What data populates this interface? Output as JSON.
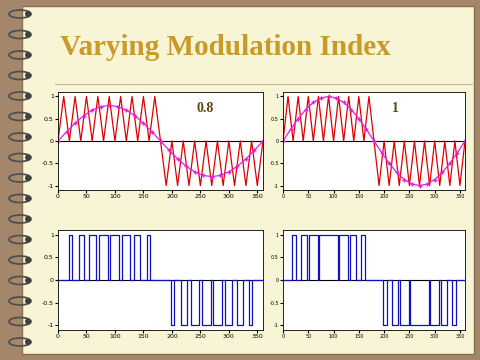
{
  "title": "Varying Modulation Index",
  "chart_data": [
    {
      "type": "line",
      "annotations": [
        "0.8"
      ],
      "xlim": [
        0,
        360
      ],
      "ylim": [
        -1.1,
        1.1
      ],
      "xticks": [
        0,
        50,
        100,
        150,
        200,
        250,
        300,
        350
      ],
      "yticks": [
        -1,
        -0.5,
        0,
        0.5,
        1
      ],
      "series": [
        {
          "type": "line",
          "color": "#e00000",
          "x": [
            0,
            10,
            20,
            30,
            40,
            50,
            60,
            70,
            80,
            90,
            100,
            110,
            120,
            130,
            140,
            150,
            160,
            170,
            180,
            190,
            200,
            210,
            220,
            230,
            240,
            250,
            260,
            270,
            280,
            290,
            300,
            310,
            320,
            330,
            340,
            350,
            360
          ],
          "values": [
            0,
            1,
            0,
            1,
            0,
            1,
            0,
            1,
            0,
            1,
            0,
            1,
            0,
            1,
            0,
            1,
            0,
            1,
            0,
            -1,
            0,
            -1,
            0,
            -1,
            0,
            -1,
            0,
            -1,
            0,
            -1,
            0,
            -1,
            0,
            -1,
            0,
            -1,
            0
          ]
        },
        {
          "type": "line",
          "color": "#e020e0",
          "marker": "+",
          "x": [
            0,
            15,
            30,
            45,
            60,
            75,
            90,
            105,
            120,
            135,
            150,
            165,
            180,
            195,
            210,
            225,
            240,
            255,
            270,
            285,
            300,
            315,
            330,
            345,
            360
          ],
          "values": [
            0,
            0.207,
            0.4,
            0.566,
            0.693,
            0.773,
            0.8,
            0.773,
            0.693,
            0.566,
            0.4,
            0.207,
            0,
            -0.207,
            -0.4,
            -0.566,
            -0.693,
            -0.773,
            -0.8,
            -0.773,
            -0.693,
            -0.566,
            -0.4,
            -0.207,
            0
          ]
        }
      ]
    },
    {
      "type": "line",
      "annotations": [
        "1"
      ],
      "xlim": [
        0,
        360
      ],
      "ylim": [
        -1.1,
        1.1
      ],
      "xticks": [
        0,
        50,
        100,
        150,
        200,
        250,
        300,
        350
      ],
      "yticks": [
        -1,
        -0.5,
        0,
        0.5,
        1
      ],
      "series": [
        {
          "type": "line",
          "color": "#e00000",
          "x": [
            0,
            10,
            20,
            30,
            40,
            50,
            60,
            70,
            80,
            90,
            100,
            110,
            120,
            130,
            140,
            150,
            160,
            170,
            180,
            190,
            200,
            210,
            220,
            230,
            240,
            250,
            260,
            270,
            280,
            290,
            300,
            310,
            320,
            330,
            340,
            350,
            360
          ],
          "values": [
            0,
            1,
            0,
            1,
            0,
            1,
            0,
            1,
            0,
            1,
            0,
            1,
            0,
            1,
            0,
            1,
            0,
            1,
            0,
            -1,
            0,
            -1,
            0,
            -1,
            0,
            -1,
            0,
            -1,
            0,
            -1,
            0,
            -1,
            0,
            -1,
            0,
            -1,
            0
          ]
        },
        {
          "type": "line",
          "color": "#e020e0",
          "marker": "+",
          "x": [
            0,
            15,
            30,
            45,
            60,
            75,
            90,
            105,
            120,
            135,
            150,
            165,
            180,
            195,
            210,
            225,
            240,
            255,
            270,
            285,
            300,
            315,
            330,
            345,
            360
          ],
          "values": [
            0,
            0.259,
            0.5,
            0.707,
            0.866,
            0.966,
            1,
            0.966,
            0.866,
            0.707,
            0.5,
            0.259,
            0,
            -0.259,
            -0.5,
            -0.707,
            -0.866,
            -0.966,
            -1,
            -0.966,
            -0.866,
            -0.707,
            -0.5,
            -0.259,
            0
          ]
        }
      ]
    },
    {
      "type": "line",
      "xlim": [
        0,
        360
      ],
      "ylim": [
        -1.1,
        1.1
      ],
      "xticks": [
        0,
        50,
        100,
        150,
        200,
        250,
        300,
        350
      ],
      "yticks": [
        -1,
        -0.5,
        0,
        0.5,
        1
      ],
      "series": [
        {
          "type": "step",
          "color": "#1010c0",
          "x": [
            0,
            18.6,
            24,
            36,
            46.1,
            53.9,
            67.5,
            72.5,
            88,
            92,
            107.5,
            112.5,
            126.1,
            133.9,
            144,
            156,
            161.4,
            198.6,
            204,
            216,
            226.1,
            233.9,
            247.5,
            252.5,
            268,
            272,
            287.5,
            292.5,
            306.1,
            313.9,
            324,
            336,
            341.4,
            360
          ],
          "values": [
            0,
            1,
            0,
            1,
            0,
            1,
            0,
            1,
            0,
            1,
            0,
            1,
            0,
            1,
            0,
            1,
            0,
            -1,
            0,
            -1,
            0,
            -1,
            0,
            -1,
            0,
            -1,
            0,
            -1,
            0,
            -1,
            0,
            -1,
            0,
            0
          ]
        }
      ]
    },
    {
      "type": "line",
      "xlim": [
        0,
        360
      ],
      "ylim": [
        -1.1,
        1.1
      ],
      "xticks": [
        0,
        50,
        100,
        150,
        200,
        250,
        300,
        350
      ],
      "yticks": [
        -1,
        -0.5,
        0,
        0.5,
        1
      ],
      "series": [
        {
          "type": "step",
          "color": "#1010c0",
          "x": [
            0,
            18.3,
            25,
            35,
            47.7,
            52.3,
            69.4,
            70.6,
            109.4,
            110.6,
            127.7,
            132.3,
            145,
            155,
            161.7,
            198.3,
            205,
            215,
            227.7,
            232.3,
            249.4,
            250.6,
            289.4,
            290.6,
            307.7,
            312.3,
            325,
            335,
            341.7,
            360
          ],
          "values": [
            0,
            1,
            0,
            1,
            0,
            1,
            0,
            1,
            0,
            1,
            0,
            1,
            0,
            1,
            0,
            -1,
            0,
            -1,
            0,
            -1,
            0,
            -1,
            0,
            -1,
            0,
            -1,
            0,
            -1,
            0,
            0
          ]
        }
      ]
    }
  ]
}
